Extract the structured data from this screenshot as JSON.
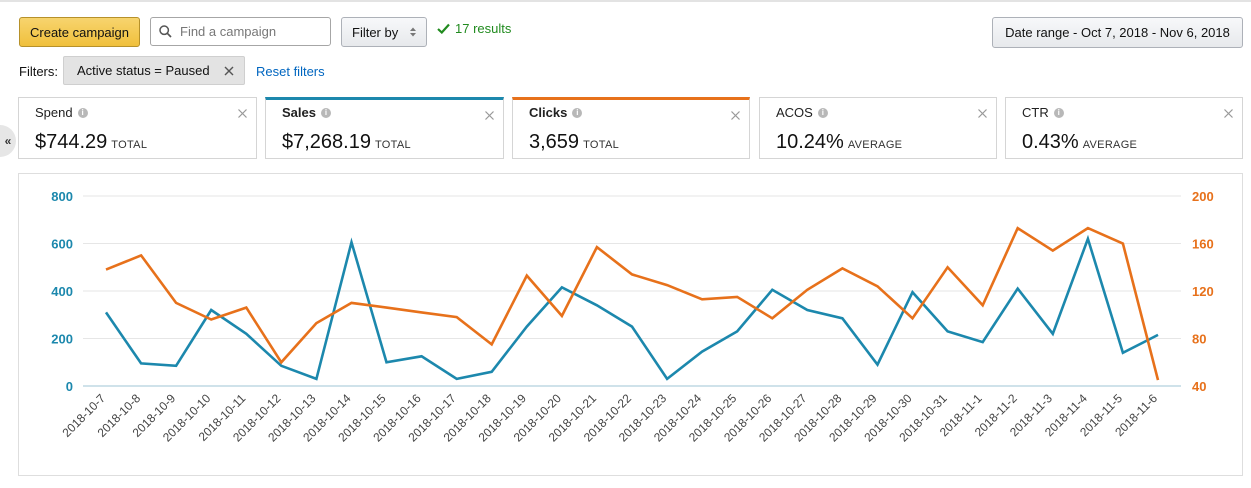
{
  "toolbar": {
    "create_label": "Create campaign",
    "search_placeholder": "Find a campaign",
    "filter_label": "Filter by",
    "results_text": "17 results",
    "date_range_label": "Date range - Oct 7, 2018 - Nov 6, 2018"
  },
  "filters": {
    "label": "Filters:",
    "chip_label": "Active status = Paused",
    "reset_label": "Reset filters"
  },
  "collapse_glyph": "«",
  "metrics": [
    {
      "title": "Spend",
      "value": "$744.29",
      "unit": "TOTAL"
    },
    {
      "title": "Sales",
      "value": "$7,268.19",
      "unit": "TOTAL",
      "accent": "#1c88ad"
    },
    {
      "title": "Clicks",
      "value": "3,659",
      "unit": "TOTAL",
      "accent": "#e7711b"
    },
    {
      "title": "ACOS",
      "value": "10.24%",
      "unit": "AVERAGE"
    },
    {
      "title": "CTR",
      "value": "0.43%",
      "unit": "AVERAGE"
    }
  ],
  "chart_data": {
    "type": "line",
    "x": [
      "2018-10-7",
      "2018-10-8",
      "2018-10-9",
      "2018-10-10",
      "2018-10-11",
      "2018-10-12",
      "2018-10-13",
      "2018-10-14",
      "2018-10-15",
      "2018-10-16",
      "2018-10-17",
      "2018-10-18",
      "2018-10-19",
      "2018-10-20",
      "2018-10-21",
      "2018-10-22",
      "2018-10-23",
      "2018-10-24",
      "2018-10-25",
      "2018-10-26",
      "2018-10-27",
      "2018-10-28",
      "2018-10-29",
      "2018-10-30",
      "2018-10-31",
      "2018-11-1",
      "2018-11-2",
      "2018-11-3",
      "2018-11-4",
      "2018-11-5",
      "2018-11-6"
    ],
    "series": [
      {
        "color": "#1c88ad",
        "axis": "left",
        "values": [
          310,
          95,
          85,
          320,
          220,
          85,
          30,
          605,
          100,
          125,
          30,
          60,
          250,
          415,
          340,
          250,
          30,
          145,
          230,
          405,
          320,
          285,
          90,
          395,
          230,
          185,
          410,
          220,
          620,
          140,
          215
        ]
      },
      {
        "color": "#e7711b",
        "axis": "right",
        "values": [
          138,
          150,
          110,
          96,
          106,
          60,
          93,
          110,
          106,
          102,
          98,
          75,
          133,
          99,
          157,
          134,
          125,
          113,
          115,
          97,
          121,
          139,
          124,
          97,
          140,
          108,
          173,
          154,
          173,
          160,
          45
        ]
      }
    ],
    "left_axis": {
      "min": 0,
      "max": 800,
      "ticks": [
        0,
        200,
        400,
        600,
        800
      ]
    },
    "right_axis": {
      "min": 40,
      "max": 200,
      "ticks": [
        40,
        80,
        120,
        160,
        200
      ]
    },
    "grid": true,
    "legend": "none"
  }
}
